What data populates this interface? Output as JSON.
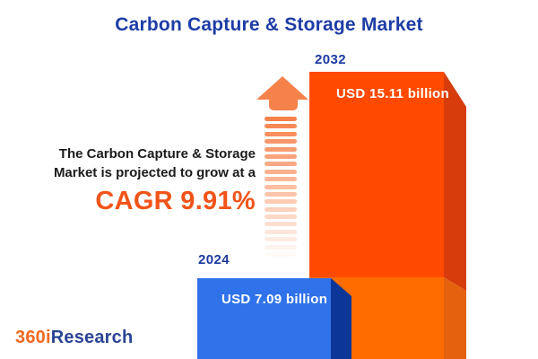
{
  "title": "Carbon Capture & Storage Market",
  "annotation": {
    "line1": "The Carbon Capture & Storage",
    "line2": "Market is projected to grow at a",
    "cagr": "CAGR 9.91%"
  },
  "bars": [
    {
      "year": "2024",
      "value_label": "USD 7.09 billion",
      "value": 7.09
    },
    {
      "year": "2032",
      "value_label": "USD 15.11 billion",
      "value": 15.11
    }
  ],
  "logo": {
    "prefix": "360i",
    "suffix": "Research"
  },
  "colors": {
    "title_blue": "#1E3CA5",
    "cagr_orange": "#F2541A",
    "annotation_text": "#1b1b1b",
    "bar_2024_front": "#2F72EA",
    "bar_2024_side": "#0C3697",
    "bar_2032_front_top": "#FF4A00",
    "bar_2032_front_bottom": "#FF6D00",
    "bar_2032_side_top": "#D63C0C",
    "bar_2032_side_bottom": "#E4610D",
    "arrow_orange": "#F6824B",
    "logo_orange": "#F26921",
    "logo_blue": "#2A4496",
    "value_text": "#ffffff"
  },
  "chart_data": {
    "type": "bar",
    "title": "Carbon Capture & Storage Market",
    "categories": [
      "2024",
      "2032"
    ],
    "values": [
      7.09,
      15.11
    ],
    "unit": "USD billion",
    "data_labels": [
      "USD 7.09 billion",
      "USD 15.11 billion"
    ],
    "series_colors": [
      "#2F72EA",
      "#FF4A00"
    ],
    "cagr_percent": 9.91,
    "annotations": [
      "The Carbon Capture & Storage Market is projected to grow at a CAGR 9.91%"
    ],
    "xlabel": "",
    "ylabel": "",
    "legend": false,
    "grid": false,
    "style": "3d-infographic-bars-with-growth-arrow"
  }
}
